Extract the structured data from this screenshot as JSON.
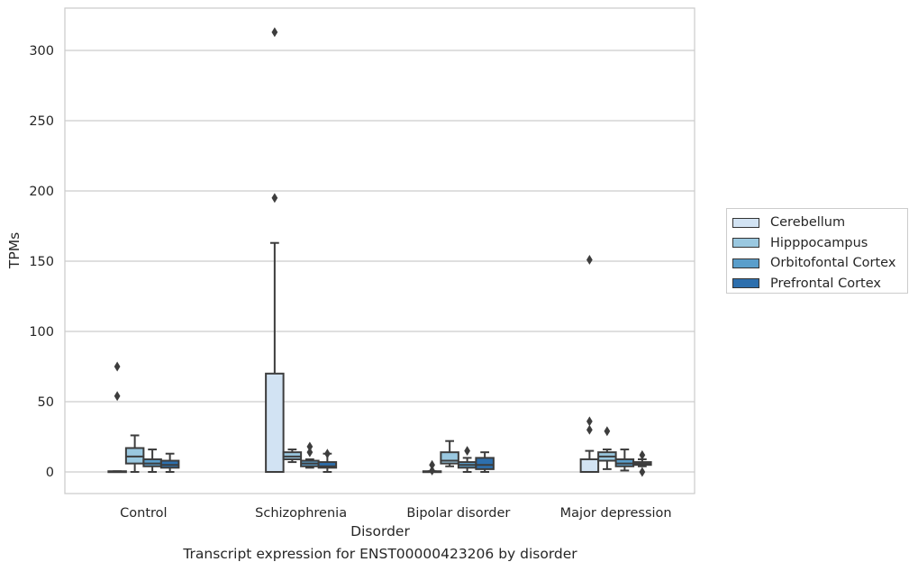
{
  "caption": "Transcript expression for ENST00000423206 by disorder",
  "chart_data": {
    "type": "box",
    "xlabel": "Disorder",
    "ylabel": "TPMs",
    "ylim": [
      -15,
      330
    ],
    "yticks": [
      0,
      50,
      100,
      150,
      200,
      250,
      300
    ],
    "grid": "horizontal",
    "legend_position": "right",
    "categories": [
      "Control",
      "Schizophrenia",
      "Bipolar disorder",
      "Major depression"
    ],
    "series": [
      {
        "name": "Cerebellum",
        "color": "#d2e3f3",
        "boxes": [
          {
            "min": 0,
            "q1": 0,
            "median": 0,
            "q3": 0.5,
            "max": 0.5,
            "outliers": [
              75,
              54
            ]
          },
          {
            "min": 0,
            "q1": 0,
            "median": 0,
            "q3": 70,
            "max": 163,
            "outliers": [
              313,
              195
            ]
          },
          {
            "min": 0,
            "q1": 0,
            "median": 0,
            "q3": 0.5,
            "max": 0.5,
            "outliers": [
              5,
              1
            ]
          },
          {
            "min": 0,
            "q1": 0,
            "median": 0,
            "q3": 9,
            "max": 15,
            "outliers": [
              151,
              36,
              30
            ]
          }
        ]
      },
      {
        "name": "Hipppocampus",
        "color": "#9ac8e0",
        "boxes": [
          {
            "min": 0,
            "q1": 6,
            "median": 11,
            "q3": 17,
            "max": 26,
            "outliers": []
          },
          {
            "min": 7,
            "q1": 9,
            "median": 11,
            "q3": 14,
            "max": 16,
            "outliers": []
          },
          {
            "min": 4,
            "q1": 6,
            "median": 8,
            "q3": 14,
            "max": 22,
            "outliers": []
          },
          {
            "min": 2,
            "q1": 8,
            "median": 11,
            "q3": 14,
            "max": 16,
            "outliers": [
              29
            ]
          }
        ]
      },
      {
        "name": "Orbitofontal Cortex",
        "color": "#5a9ecb",
        "boxes": [
          {
            "min": 0,
            "q1": 4,
            "median": 6,
            "q3": 9,
            "max": 16,
            "outliers": []
          },
          {
            "min": 3,
            "q1": 4,
            "median": 6,
            "q3": 8,
            "max": 9,
            "outliers": [
              18,
              14
            ]
          },
          {
            "min": 0,
            "q1": 3,
            "median": 5,
            "q3": 7,
            "max": 10,
            "outliers": [
              15
            ]
          },
          {
            "min": 1,
            "q1": 4,
            "median": 6,
            "q3": 9,
            "max": 16,
            "outliers": []
          }
        ]
      },
      {
        "name": "Prefrontal Cortex",
        "color": "#2d6fad",
        "boxes": [
          {
            "min": 0,
            "q1": 3,
            "median": 5,
            "q3": 8,
            "max": 13,
            "outliers": []
          },
          {
            "min": 0,
            "q1": 3,
            "median": 4,
            "q3": 7,
            "max": 13,
            "outliers": [
              13
            ]
          },
          {
            "min": 0,
            "q1": 2,
            "median": 5,
            "q3": 10,
            "max": 14,
            "outliers": []
          },
          {
            "min": 4,
            "q1": 5,
            "median": 6,
            "q3": 7,
            "max": 9,
            "outliers": [
              12,
              0
            ]
          }
        ]
      }
    ]
  }
}
